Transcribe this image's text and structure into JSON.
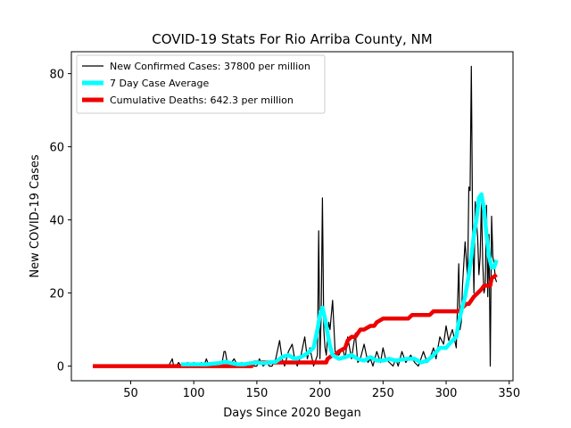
{
  "chart_data": {
    "type": "line",
    "title": "COVID-19 Stats For Rio Arriba County, NM",
    "xlabel": "Days Since 2020 Began",
    "ylabel": "New COVID-19 Cases",
    "xlim": [
      3,
      353
    ],
    "ylim": [
      -4,
      86
    ],
    "xticks": [
      50,
      100,
      150,
      200,
      250,
      300,
      350
    ],
    "yticks": [
      0,
      20,
      40,
      60,
      80
    ],
    "grid": false,
    "legend_position": "top-left",
    "series": [
      {
        "name": "New Confirmed Cases: 37800 per million",
        "color": "#000000",
        "style": "thin-line",
        "x": [
          20,
          40,
          60,
          80,
          83,
          84,
          85,
          86,
          88,
          90,
          92,
          95,
          98,
          100,
          102,
          104,
          106,
          108,
          110,
          112,
          113,
          115,
          118,
          120,
          122,
          124,
          125,
          127,
          130,
          132,
          135,
          138,
          140,
          142,
          145,
          148,
          150,
          152,
          155,
          158,
          160,
          162,
          165,
          168,
          170,
          172,
          175,
          178,
          180,
          182,
          185,
          188,
          190,
          192,
          195,
          198,
          199,
          200,
          201,
          202,
          203,
          204,
          205,
          207,
          208,
          210,
          212,
          215,
          218,
          220,
          222,
          225,
          228,
          230,
          232,
          235,
          238,
          240,
          242,
          245,
          248,
          250,
          252,
          255,
          258,
          260,
          262,
          265,
          268,
          270,
          272,
          275,
          278,
          280,
          282,
          285,
          288,
          290,
          292,
          295,
          298,
          300,
          302,
          305,
          308,
          310,
          311,
          312,
          313,
          315,
          317,
          318,
          319,
          320,
          321,
          322,
          323,
          324,
          325,
          326,
          327,
          328,
          329,
          330,
          331,
          332,
          333,
          334,
          335,
          336,
          337,
          338,
          339,
          340
        ],
        "y": [
          0,
          0,
          0,
          0,
          2,
          0,
          0,
          0,
          1,
          0,
          0,
          1,
          0,
          1,
          0,
          0,
          1,
          0,
          2,
          0,
          0,
          1,
          0,
          1,
          0,
          4,
          4,
          0,
          1,
          2,
          0,
          1,
          0,
          0,
          1,
          0,
          0,
          2,
          0,
          1,
          0,
          0,
          2,
          7,
          2,
          0,
          4,
          6,
          2,
          0,
          3,
          8,
          2,
          5,
          0,
          3,
          37,
          2,
          14,
          46,
          10,
          5,
          3,
          12,
          10,
          18,
          4,
          3,
          5,
          2,
          8,
          2,
          9,
          1,
          2,
          6,
          1,
          2,
          0,
          4,
          1,
          5,
          2,
          1,
          0,
          2,
          0,
          4,
          1,
          2,
          3,
          1,
          0,
          2,
          4,
          1,
          3,
          5,
          2,
          8,
          6,
          11,
          7,
          10,
          5,
          28,
          10,
          12,
          22,
          34,
          24,
          49,
          48,
          82,
          38,
          20,
          45,
          40,
          35,
          25,
          30,
          45,
          28,
          20,
          22,
          44,
          19,
          36,
          0,
          41,
          30,
          28,
          24,
          23
        ]
      },
      {
        "name": "7 Day Case Average",
        "color": "#00ffff",
        "style": "thick-line",
        "x": [
          90,
          100,
          110,
          120,
          125,
          130,
          135,
          140,
          145,
          150,
          155,
          160,
          165,
          170,
          175,
          180,
          185,
          190,
          195,
          198,
          200,
          202,
          204,
          206,
          208,
          210,
          215,
          220,
          225,
          230,
          235,
          240,
          245,
          250,
          255,
          260,
          265,
          270,
          275,
          280,
          285,
          290,
          295,
          300,
          305,
          308,
          310,
          312,
          315,
          318,
          320,
          322,
          324,
          326,
          328,
          330,
          332,
          334,
          336,
          338,
          340
        ],
        "y": [
          0.5,
          0.5,
          0.5,
          0.8,
          1.2,
          0.8,
          0.5,
          0.5,
          0.8,
          1.0,
          0.8,
          1.0,
          1.2,
          2.5,
          3.0,
          2.0,
          2.5,
          3.5,
          5.0,
          10.0,
          14.0,
          16.0,
          13.0,
          9.0,
          5.5,
          3.0,
          2.0,
          2.5,
          3.0,
          2.0,
          1.5,
          2.5,
          1.5,
          1.5,
          2.0,
          1.5,
          1.8,
          2.0,
          2.0,
          1.0,
          1.5,
          3.0,
          5.0,
          5.0,
          7.0,
          8.0,
          12.0,
          15.0,
          19.0,
          25.0,
          30.0,
          36.0,
          40.0,
          46.0,
          47.0,
          43.0,
          36.0,
          30.0,
          27.0,
          27.0,
          29.0
        ]
      },
      {
        "name": "Cumulative Deaths: 642.3 per million",
        "color": "#ee0000",
        "style": "thick-line",
        "x": [
          20,
          146,
          148,
          205,
          206,
          210,
          212,
          215,
          220,
          222,
          225,
          228,
          232,
          235,
          240,
          243,
          245,
          250,
          255,
          260,
          265,
          270,
          273,
          278,
          283,
          287,
          290,
          295,
          300,
          305,
          310,
          313,
          316,
          318,
          320,
          322,
          325,
          328,
          330,
          335,
          336,
          340
        ],
        "y": [
          0,
          0,
          1,
          1,
          2,
          3,
          3,
          4,
          5,
          7,
          8,
          8,
          10,
          10,
          11,
          11,
          12,
          13,
          13,
          13,
          13,
          13,
          14,
          14,
          14,
          14,
          15,
          15,
          15,
          15,
          15,
          16,
          17,
          17,
          18,
          19,
          20,
          21,
          22,
          22,
          24,
          25
        ]
      }
    ]
  }
}
